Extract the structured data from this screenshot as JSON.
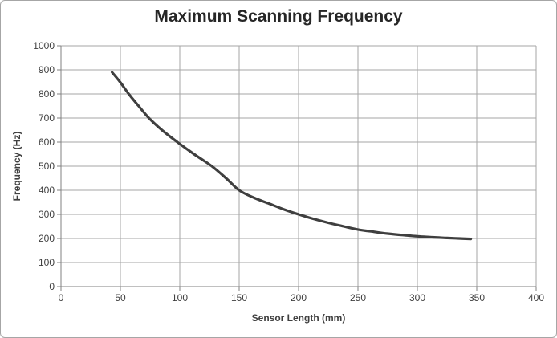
{
  "window": {
    "background_color": "#ffffff",
    "border_color": "#a6a6a6"
  },
  "chart_data": {
    "type": "line",
    "title": "Maximum Scanning Frequency",
    "xlabel": "Sensor Length (mm)",
    "ylabel": "Frequency (Hz)",
    "xlim": [
      0,
      400
    ],
    "ylim": [
      0,
      1000
    ],
    "x_ticks": [
      0,
      50,
      100,
      150,
      200,
      250,
      300,
      350,
      400
    ],
    "y_ticks": [
      0,
      100,
      200,
      300,
      400,
      500,
      600,
      700,
      800,
      900,
      1000
    ],
    "grid": true,
    "legend": "none",
    "series": [
      {
        "name": "Maximum Scanning Frequency",
        "x": [
          43,
          50,
          57,
          65,
          74,
          85,
          98,
          112,
          127,
          139,
          150,
          162,
          175,
          188,
          200,
          212,
          225,
          238,
          250,
          263,
          275,
          288,
          300,
          313,
          325,
          335,
          345
        ],
        "y": [
          890,
          848,
          800,
          752,
          700,
          650,
          600,
          550,
          500,
          450,
          400,
          370,
          345,
          320,
          300,
          282,
          265,
          250,
          237,
          228,
          220,
          214,
          209,
          205,
          202,
          200,
          198
        ],
        "color": "#3f3f3f",
        "stroke_width": 3.2,
        "smooth": true
      }
    ],
    "colors": {
      "gridline": "#a6a6a6",
      "axis": "#808080",
      "tick_label": "#404040",
      "title": "#262626"
    }
  }
}
